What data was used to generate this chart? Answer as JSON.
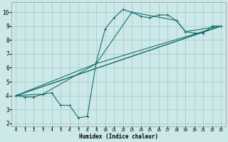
{
  "xlabel": "Humidex (Indice chaleur)",
  "bg_color": "#cce8e8",
  "grid_color": "#aacccc",
  "line_color": "#1a6e6e",
  "xlim": [
    -0.5,
    23.5
  ],
  "ylim": [
    1.8,
    10.7
  ],
  "yticks": [
    2,
    3,
    4,
    5,
    6,
    7,
    8,
    9,
    10
  ],
  "xticks": [
    0,
    1,
    2,
    3,
    4,
    5,
    6,
    7,
    8,
    9,
    10,
    11,
    12,
    13,
    14,
    15,
    16,
    17,
    18,
    19,
    20,
    21,
    22,
    23
  ],
  "line1_x": [
    0,
    1,
    2,
    3,
    4,
    5,
    6,
    7,
    8,
    9,
    10,
    11,
    12,
    13,
    14,
    15,
    16,
    17,
    18,
    19,
    20,
    21,
    22,
    23
  ],
  "line1_y": [
    4.0,
    3.9,
    3.9,
    4.1,
    4.2,
    3.3,
    3.3,
    2.4,
    2.5,
    6.4,
    8.8,
    9.6,
    10.2,
    10.0,
    9.7,
    9.6,
    9.8,
    9.8,
    9.4,
    8.6,
    8.5,
    8.5,
    9.0,
    9.0
  ],
  "line2_x": [
    0,
    3,
    9,
    13,
    18,
    19,
    23
  ],
  "line2_y": [
    4.0,
    4.1,
    6.3,
    10.0,
    9.4,
    8.6,
    9.0
  ],
  "line3_x": [
    0,
    23
  ],
  "line3_y": [
    4.0,
    9.0
  ],
  "line4_x": [
    0,
    23
  ],
  "line4_y": [
    4.0,
    9.0
  ],
  "line5_x": [
    0,
    9,
    23
  ],
  "line5_y": [
    4.0,
    6.3,
    9.0
  ]
}
